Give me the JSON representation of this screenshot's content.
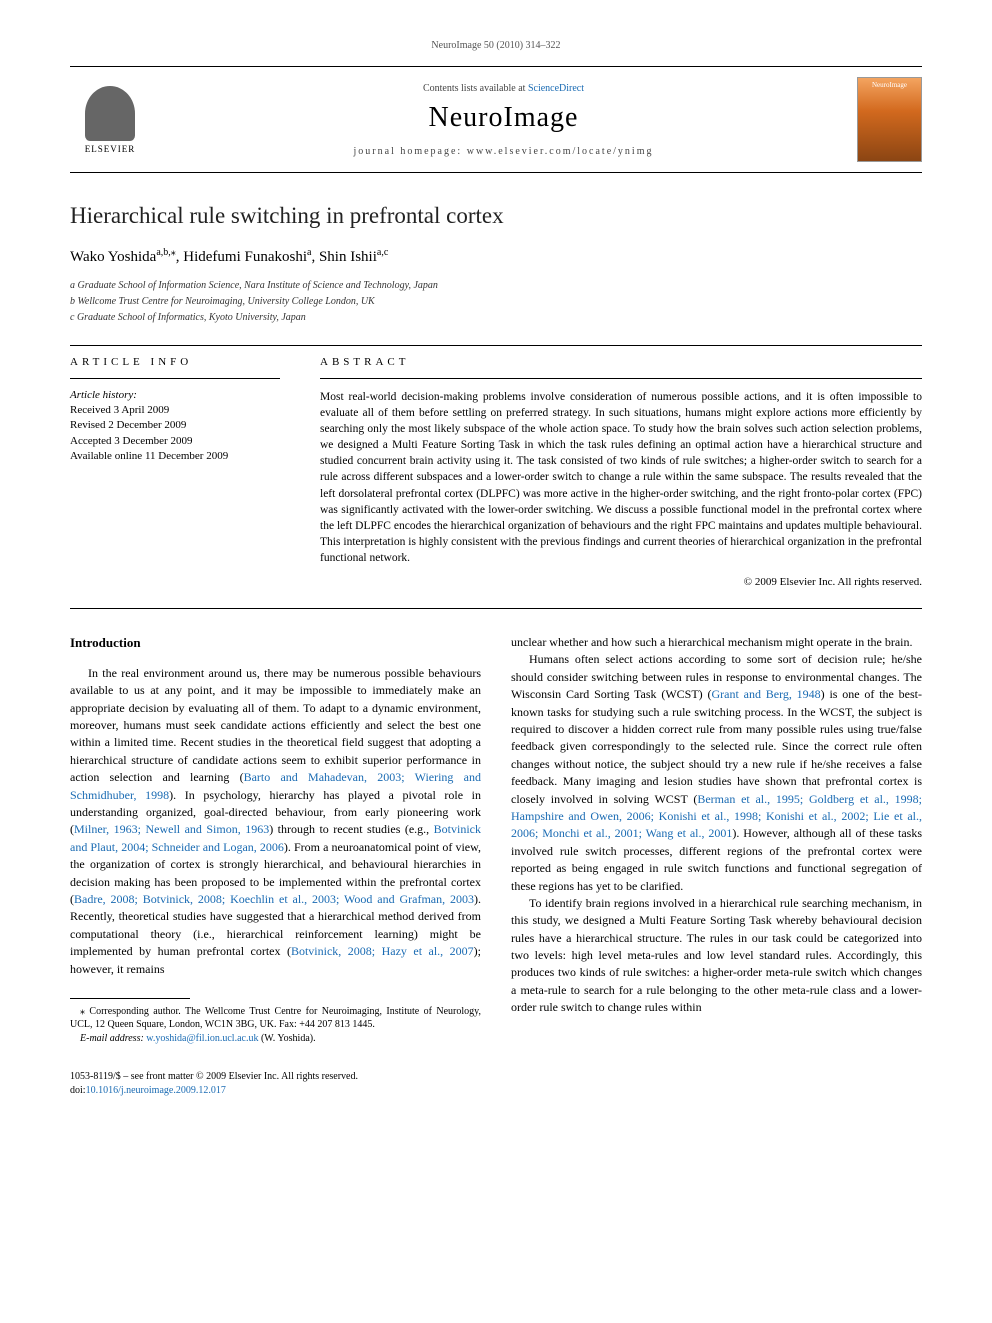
{
  "header": {
    "citation": "NeuroImage 50 (2010) 314–322",
    "contents_line_prefix": "Contents lists available at ",
    "contents_link": "ScienceDirect",
    "journal_name": "NeuroImage",
    "homepage_prefix": "journal homepage: ",
    "homepage_url": "www.elsevier.com/locate/ynimg",
    "elsevier_label": "ELSEVIER",
    "cover_label": "NeuroImage"
  },
  "article": {
    "title": "Hierarchical rule switching in prefrontal cortex",
    "authors_html": "Wako Yoshida",
    "author1": "Wako Yoshida",
    "sup1": "a,b,",
    "star": "⁎",
    "author2": ", Hidefumi Funakoshi",
    "sup2": "a",
    "author3": ", Shin Ishii",
    "sup3": "a,c",
    "affiliations": {
      "a": "a Graduate School of Information Science, Nara Institute of Science and Technology, Japan",
      "b": "b Wellcome Trust Centre for Neuroimaging, University College London, UK",
      "c": "c Graduate School of Informatics, Kyoto University, Japan"
    }
  },
  "info": {
    "heading": "article info",
    "history_label": "Article history:",
    "received": "Received 3 April 2009",
    "revised": "Revised 2 December 2009",
    "accepted": "Accepted 3 December 2009",
    "online": "Available online 11 December 2009"
  },
  "abstract": {
    "heading": "abstract",
    "text": "Most real-world decision-making problems involve consideration of numerous possible actions, and it is often impossible to evaluate all of them before settling on preferred strategy. In such situations, humans might explore actions more efficiently by searching only the most likely subspace of the whole action space. To study how the brain solves such action selection problems, we designed a Multi Feature Sorting Task in which the task rules defining an optimal action have a hierarchical structure and studied concurrent brain activity using it. The task consisted of two kinds of rule switches; a higher-order switch to search for a rule across different subspaces and a lower-order switch to change a rule within the same subspace. The results revealed that the left dorsolateral prefrontal cortex (DLPFC) was more active in the higher-order switching, and the right fronto-polar cortex (FPC) was significantly activated with the lower-order switching. We discuss a possible functional model in the prefrontal cortex where the left DLPFC encodes the hierarchical organization of behaviours and the right FPC maintains and updates multiple behavioural. This interpretation is highly consistent with the previous findings and current theories of hierarchical organization in the prefrontal functional network.",
    "copyright": "© 2009 Elsevier Inc. All rights reserved."
  },
  "body": {
    "intro_heading": "Introduction",
    "col1_p1a": "In the real environment around us, there may be numerous possible behaviours available to us at any point, and it may be impossible to immediately make an appropriate decision by evaluating all of them. To adapt to a dynamic environment, moreover, humans must seek candidate actions efficiently and select the best one within a limited time. Recent studies in the theoretical field suggest that adopting a hierarchical structure of candidate actions seem to exhibit superior performance in action selection and learning (",
    "ref1": "Barto and Mahadevan, 2003; Wiering and Schmidhuber, 1998",
    "col1_p1b": "). In psychology, hierarchy has played a pivotal role in understanding organized, goal-directed behaviour, from early pioneering work (",
    "ref2": "Milner, 1963; Newell and Simon, 1963",
    "col1_p1c": ") through to recent studies (e.g., ",
    "ref3": "Botvinick and Plaut, 2004; Schneider and Logan, 2006",
    "col1_p1d": "). From a neuroanatomical point of view, the organization of cortex is strongly hierarchical, and behavioural hierarchies in decision making has been proposed to be implemented within the prefrontal cortex (",
    "ref4": "Badre, 2008; Botvinick, 2008; Koechlin et al., 2003; Wood and Grafman, 2003",
    "col1_p1e": "). Recently, theoretical studies have suggested that a hierarchical method derived from computational theory (i.e., hierarchical reinforcement learning) might be implemented by human prefrontal cortex (",
    "ref5": "Botvinick, 2008; Hazy et al., 2007",
    "col1_p1f": "); however, it remains",
    "col2_p1": "unclear whether and how such a hierarchical mechanism might operate in the brain.",
    "col2_p2a": "Humans often select actions according to some sort of decision rule; he/she should consider switching between rules in response to environmental changes. The Wisconsin Card Sorting Task (WCST) (",
    "ref6": "Grant and Berg, 1948",
    "col2_p2b": ") is one of the best-known tasks for studying such a rule switching process. In the WCST, the subject is required to discover a hidden correct rule from many possible rules using true/false feedback given correspondingly to the selected rule. Since the correct rule often changes without notice, the subject should try a new rule if he/she receives a false feedback. Many imaging and lesion studies have shown that prefrontal cortex is closely involved in solving WCST (",
    "ref7": "Berman et al., 1995; Goldberg et al., 1998; Hampshire and Owen, 2006; Konishi et al., 1998; Konishi et al., 2002; Lie et al., 2006; Monchi et al., 2001; Wang et al., 2001",
    "col2_p2c": "). However, although all of these tasks involved rule switch processes, different regions of the prefrontal cortex were reported as being engaged in rule switch functions and functional segregation of these regions has yet to be clarified.",
    "col2_p3": "To identify brain regions involved in a hierarchical rule searching mechanism, in this study, we designed a Multi Feature Sorting Task whereby behavioural decision rules have a hierarchical structure. The rules in our task could be categorized into two levels: high level meta-rules and low level standard rules. Accordingly, this produces two kinds of rule switches: a higher-order meta-rule switch which changes a meta-rule to search for a rule belonging to the other meta-rule class and a lower-order rule switch to change rules within"
  },
  "footnote": {
    "corr_label": "⁎ Corresponding author. The Wellcome Trust Centre for Neuroimaging, Institute of Neurology, UCL, 12 Queen Square, London, WC1N 3BG, UK. Fax: +44 207 813 1445.",
    "email_label": "E-mail address:",
    "email": "w.yoshida@fil.ion.ucl.ac.uk",
    "email_suffix": " (W. Yoshida)."
  },
  "footer": {
    "issn": "1053-8119/$ – see front matter © 2009 Elsevier Inc. All rights reserved.",
    "doi_prefix": "doi:",
    "doi": "10.1016/j.neuroimage.2009.12.017"
  },
  "colors": {
    "link": "#1a6bb3",
    "text": "#000000",
    "muted": "#555555"
  }
}
